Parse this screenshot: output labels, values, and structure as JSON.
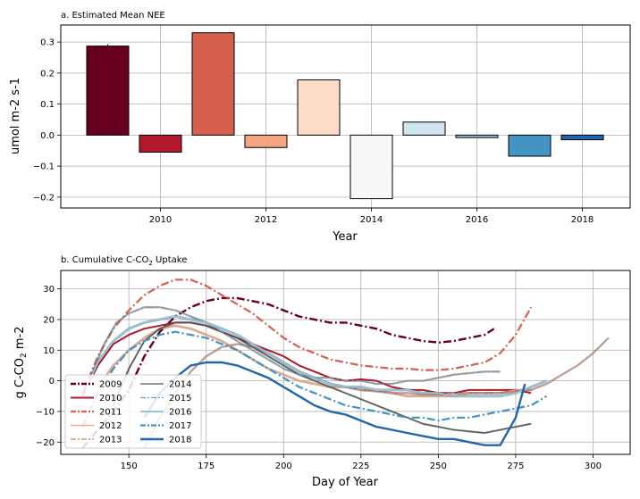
{
  "chart_data": [
    {
      "type": "bar",
      "title": "a. Estimated Mean NEE",
      "xlabel": "Year",
      "ylabel": "umol m-2 s-1",
      "categories": [
        "2009",
        "2010",
        "2011",
        "2012",
        "2013",
        "2014",
        "2015",
        "2016",
        "2017",
        "2018"
      ],
      "values": [
        0.287,
        -0.055,
        0.33,
        -0.04,
        0.178,
        -0.205,
        0.042,
        -0.008,
        -0.068,
        -0.015
      ],
      "colors": [
        "#67001f",
        "#b2182b",
        "#d6604d",
        "#f4a582",
        "#fddbc7",
        "#f7f7f7",
        "#d1e5f0",
        "#92c5de",
        "#4393c3",
        "#2166ac"
      ],
      "xticks": [
        "2010",
        "2012",
        "2014",
        "2016",
        "2018"
      ],
      "yticks": [
        "0.3",
        "0.2",
        "0.1",
        "0.0",
        "−0.1",
        "−0.2"
      ],
      "ylim": [
        -0.235,
        0.355
      ],
      "grid": true
    },
    {
      "type": "line",
      "title_prefix": "b. Cumulative C-CO",
      "title_sub": "2",
      "title_suffix": " Uptake",
      "xlabel": "Day of Year",
      "ylabel_prefix": "g C-CO",
      "ylabel_sub": "2",
      "ylabel_suffix": " m-2",
      "xlim": [
        128,
        312
      ],
      "ylim": [
        -24,
        36
      ],
      "xticks": [
        "150",
        "175",
        "200",
        "225",
        "250",
        "275",
        "300"
      ],
      "yticks": [
        "30",
        "20",
        "10",
        "0",
        "−10",
        "−20"
      ],
      "grid": true,
      "legend_position": "lower-left",
      "series": [
        {
          "name": "2009",
          "color": "#67001f",
          "style": "dashdot",
          "width": 2.4,
          "x": [
            135,
            145,
            150,
            155,
            160,
            165,
            170,
            175,
            180,
            185,
            190,
            195,
            200,
            205,
            210,
            215,
            220,
            225,
            230,
            235,
            240,
            245,
            250,
            255,
            260,
            265,
            268
          ],
          "y": [
            -22,
            -10,
            -3,
            8,
            16,
            21,
            24,
            26,
            27,
            27,
            26,
            25,
            23,
            21,
            20,
            19,
            19,
            18,
            17,
            15,
            14,
            13,
            12.5,
            13,
            14,
            15,
            17
          ]
        },
        {
          "name": "2010",
          "color": "#b2182b",
          "style": "solid",
          "width": 2.0,
          "x": [
            135,
            140,
            145,
            150,
            155,
            160,
            165,
            170,
            175,
            180,
            185,
            190,
            195,
            200,
            205,
            210,
            215,
            220,
            225,
            230,
            235,
            240,
            245,
            250,
            255,
            260,
            265,
            270,
            275,
            280
          ],
          "y": [
            -5,
            5,
            12,
            15,
            17,
            18,
            19,
            19,
            18,
            16,
            14,
            12,
            10,
            8,
            5,
            3,
            1,
            0,
            0.5,
            0,
            -2,
            -3,
            -3,
            -4,
            -4,
            -3,
            -3,
            -3,
            -3,
            -4
          ]
        },
        {
          "name": "2011",
          "color": "#d6604d",
          "style": "dashdot",
          "width": 2.2,
          "x": [
            135,
            140,
            145,
            150,
            155,
            160,
            165,
            170,
            175,
            180,
            185,
            190,
            195,
            200,
            205,
            210,
            215,
            220,
            225,
            230,
            235,
            240,
            245,
            250,
            255,
            260,
            265,
            270,
            275,
            280
          ],
          "y": [
            -4,
            8,
            17,
            23,
            28,
            31,
            33,
            33,
            31,
            28,
            25,
            22,
            18,
            14,
            11,
            9,
            7,
            6,
            5,
            4.5,
            4,
            4,
            3.5,
            3.5,
            4,
            5,
            6,
            9,
            15,
            24
          ]
        },
        {
          "name": "2012",
          "color": "#f4a582",
          "style": "solid",
          "width": 1.6,
          "x": [
            140,
            145,
            150,
            155,
            160,
            165,
            170,
            175,
            180,
            185,
            190,
            195,
            200,
            205,
            210,
            215,
            220,
            225,
            230,
            235,
            240,
            245,
            250,
            255,
            260,
            265,
            270,
            275,
            280
          ],
          "y": [
            -2,
            5,
            10,
            14,
            17,
            18,
            17,
            15,
            13,
            10,
            7,
            4,
            2,
            0,
            -1,
            -2,
            -2,
            -3,
            -3,
            -4,
            -5,
            -5,
            -5,
            -5,
            -4,
            -4,
            -4,
            -3,
            -3
          ]
        },
        {
          "name": "2013",
          "color": "#d6927a",
          "style": "dashdot",
          "width": 1.4,
          "x": [
            155,
            160,
            165,
            170,
            175,
            180,
            185,
            190,
            195,
            200,
            205,
            210,
            215,
            220,
            225,
            230,
            235,
            240,
            245,
            250,
            255,
            260,
            265,
            270,
            275,
            280,
            285,
            290,
            295,
            300,
            305
          ],
          "y": [
            -22,
            -12,
            -4,
            3,
            8,
            11,
            12,
            11,
            9,
            6,
            3,
            1,
            -1,
            -2,
            -3,
            -3.5,
            -4,
            -4,
            -4.5,
            -4.5,
            -4,
            -4,
            -4,
            -4,
            -3.5,
            -3,
            -1,
            2,
            5,
            9,
            14
          ]
        },
        {
          "name": "2014",
          "color": "#555555",
          "style": "solid",
          "width": 1.3,
          "x": [
            145,
            150,
            155,
            160,
            165,
            170,
            175,
            180,
            185,
            190,
            195,
            200,
            205,
            210,
            215,
            220,
            225,
            230,
            235,
            240,
            245,
            250,
            255,
            260,
            265,
            270,
            275,
            280
          ],
          "y": [
            -8,
            4,
            13,
            17,
            19,
            19,
            18,
            16,
            14,
            11,
            8,
            5,
            2,
            0,
            -2,
            -4,
            -6,
            -8,
            -10,
            -12,
            -14,
            -15,
            -16,
            -16.5,
            -17,
            -16,
            -15,
            -14
          ]
        },
        {
          "name": "2015",
          "color": "#7a9bb3",
          "style": "dashdot",
          "width": 1.3,
          "x": [
            138,
            142,
            146,
            150,
            155,
            160,
            165,
            170,
            175,
            180,
            185,
            190,
            195,
            200,
            205,
            210,
            215,
            220,
            225,
            230,
            235,
            240,
            245,
            250,
            255,
            260,
            265,
            270
          ],
          "y": [
            2,
            12,
            19,
            22,
            24,
            24,
            23,
            21,
            19,
            16,
            13,
            10,
            7,
            4,
            2,
            1,
            1,
            0,
            0,
            -1,
            -1,
            0,
            0,
            1,
            2,
            2.5,
            3,
            3
          ]
        },
        {
          "name": "2016",
          "color": "#92c5de",
          "style": "solid",
          "width": 2.0,
          "x": [
            136,
            140,
            145,
            150,
            155,
            160,
            165,
            170,
            175,
            180,
            185,
            190,
            195,
            200,
            205,
            210,
            215,
            220,
            225,
            230,
            235,
            240,
            245,
            250,
            255,
            260,
            265,
            270,
            275,
            280,
            285
          ],
          "y": [
            -3,
            6,
            13,
            17,
            19,
            20,
            21,
            20,
            19,
            17,
            15,
            12,
            9,
            6,
            3,
            1,
            -1,
            -2,
            -2,
            -3,
            -3,
            -3,
            -4,
            -4,
            -5,
            -5,
            -5,
            -5,
            -4,
            -2,
            0
          ]
        },
        {
          "name": "2017",
          "color": "#4393c3",
          "style": "dashdot",
          "width": 2.2,
          "x": [
            135,
            140,
            145,
            150,
            155,
            160,
            165,
            170,
            175,
            180,
            185,
            190,
            195,
            200,
            205,
            210,
            215,
            220,
            225,
            230,
            235,
            240,
            245,
            250,
            255,
            260,
            265,
            270,
            275,
            280,
            285
          ],
          "y": [
            -15,
            -4,
            4,
            10,
            13,
            15,
            16,
            15,
            14,
            12,
            10,
            7,
            4,
            1,
            -2,
            -4,
            -6,
            -8,
            -9,
            -10,
            -11,
            -12,
            -12,
            -13,
            -12,
            -12,
            -11,
            -10,
            -9,
            -8,
            -5
          ]
        },
        {
          "name": "2018",
          "color": "#2166ac",
          "style": "solid",
          "width": 2.4,
          "x": [
            155,
            160,
            165,
            170,
            175,
            180,
            185,
            190,
            195,
            200,
            205,
            210,
            215,
            220,
            225,
            230,
            235,
            240,
            245,
            250,
            255,
            260,
            265,
            270,
            275,
            278
          ],
          "y": [
            -12,
            -4,
            1,
            5,
            6,
            6,
            5,
            3,
            1,
            -2,
            -5,
            -8,
            -10,
            -11,
            -13,
            -15,
            -16,
            -17,
            -18,
            -19,
            -19,
            -20,
            -21,
            -21,
            -12,
            -1
          ]
        }
      ]
    }
  ]
}
